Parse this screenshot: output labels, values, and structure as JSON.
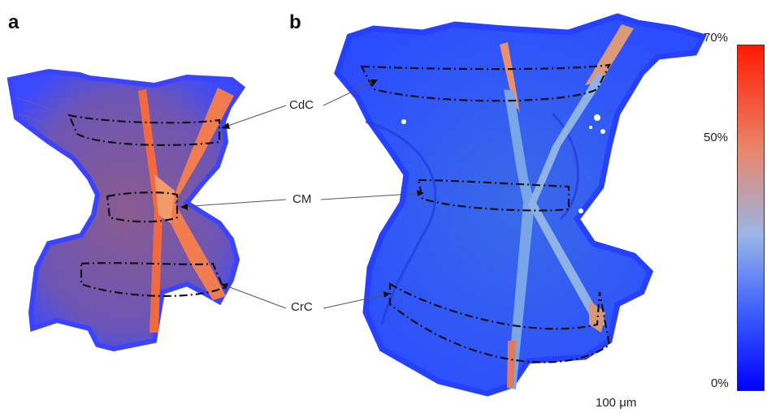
{
  "panels": {
    "a": "a",
    "b": "b"
  },
  "callouts": {
    "cdc": "CdC",
    "cm": "CM",
    "crc": "CrC"
  },
  "scale_bar": "100 μm",
  "colorbar": {
    "top_label": "70%",
    "mid_label": "50%",
    "bottom_label": "0%",
    "colors": [
      "#ff1a00",
      "#e9856a",
      "#8fb3e6",
      "#3a5cff",
      "#0000ff"
    ]
  }
}
